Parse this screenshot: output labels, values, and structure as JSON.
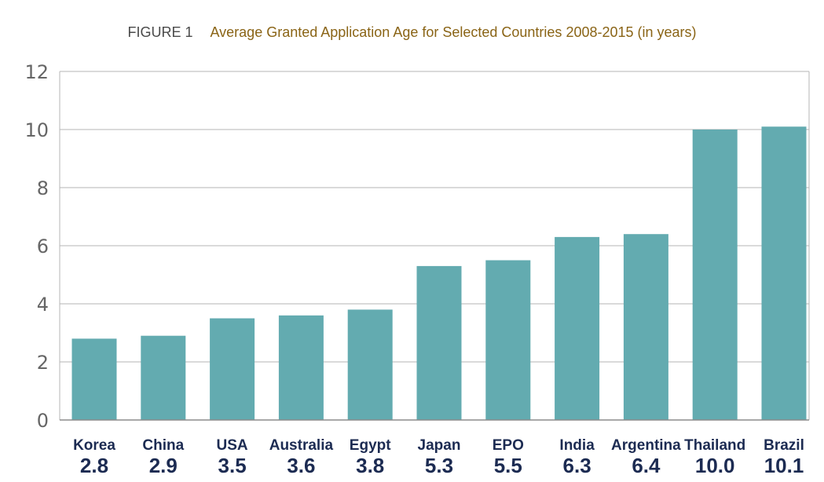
{
  "figure_label": "FIGURE 1",
  "colors": {
    "bar": "#63abb0",
    "title": "#8a6416",
    "figure_label": "#4a4a4a",
    "category_text": "#1c2b52",
    "grid": "#b5b5b5",
    "axis_text": "#666666"
  },
  "chart_data": {
    "type": "bar",
    "title": "Average Granted Application Age for Selected Countries 2008-2015 (in years)",
    "categories": [
      "Korea",
      "China",
      "USA",
      "Australia",
      "Egypt",
      "Japan",
      "EPO",
      "India",
      "Argentina",
      "Thailand",
      "Brazil"
    ],
    "values": [
      2.8,
      2.9,
      3.5,
      3.6,
      3.8,
      5.3,
      5.5,
      6.3,
      6.4,
      10.0,
      10.1
    ],
    "value_labels": [
      "2.8",
      "2.9",
      "3.5",
      "3.6",
      "3.8",
      "5.3",
      "5.5",
      "6.3",
      "6.4",
      "10.0",
      "10.1"
    ],
    "yticks": [
      "0",
      "2",
      "4",
      "6",
      "8",
      "10",
      "12"
    ],
    "ylim": [
      0,
      12
    ],
    "grid": true,
    "legend": false,
    "xlabel": "",
    "ylabel": ""
  }
}
